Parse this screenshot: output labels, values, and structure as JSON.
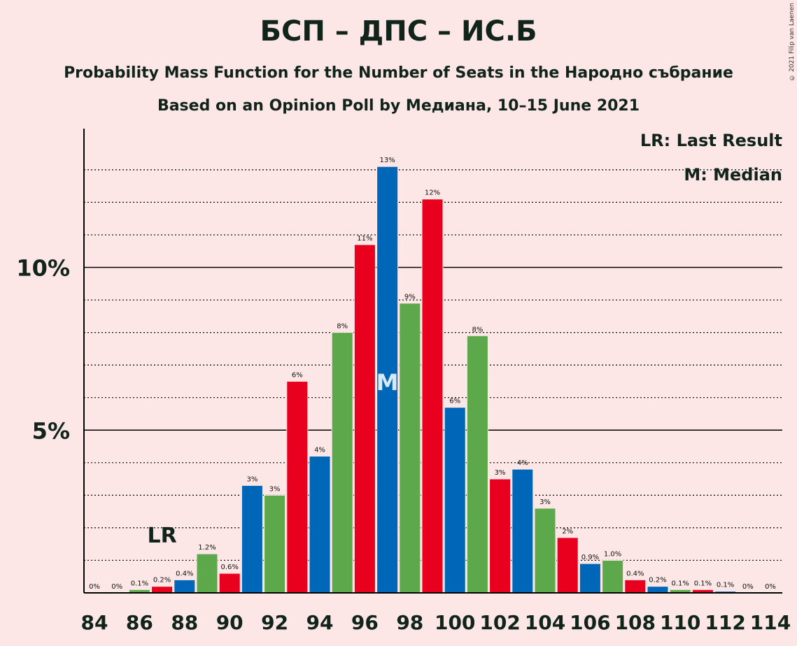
{
  "title": "БСП – ДПС – ИС.Б",
  "subtitle1": "Probability Mass Function for the Number of Seats in the Народно събрание",
  "subtitle2": "Based on an Opinion Poll by Медиана, 10–15 June 2021",
  "copyright": "© 2021 Filip van Laenen",
  "legend": {
    "lr": "LR: Last Result",
    "m": "M: Median"
  },
  "markers": {
    "lr_label": "LR",
    "lr_seat": 87,
    "median_label": "M",
    "median_seat": 97
  },
  "colors": {
    "red": "#E8001E",
    "blue": "#0066B8",
    "green": "#5CA84A",
    "background": "#FDE6E6"
  },
  "chart_data": {
    "type": "bar",
    "x": [
      84,
      85,
      86,
      87,
      88,
      89,
      90,
      91,
      92,
      93,
      94,
      95,
      96,
      97,
      98,
      99,
      100,
      101,
      102,
      103,
      104,
      105,
      106,
      107,
      108,
      109,
      110,
      111,
      112,
      113,
      114
    ],
    "values": [
      0,
      0,
      0.1,
      0.2,
      0.4,
      1.2,
      0.6,
      3.3,
      3.0,
      6.5,
      4.2,
      8.0,
      10.7,
      13.1,
      8.9,
      12.1,
      5.7,
      7.9,
      3.5,
      3.8,
      2.6,
      1.7,
      0.9,
      1.0,
      0.4,
      0.2,
      0.1,
      0.1,
      0.05,
      0,
      0
    ],
    "labels": [
      "0%",
      "0%",
      "0.1%",
      "0.2%",
      "0.4%",
      "1.2%",
      "0.6%",
      "3%",
      "3%",
      "6%",
      "4%",
      "8%",
      "11%",
      "13%",
      "9%",
      "12%",
      "6%",
      "8%",
      "3%",
      "4%",
      "3%",
      "2%",
      "0.9%",
      "1.0%",
      "0.4%",
      "0.2%",
      "0.1%",
      "0.1%",
      "0.1%",
      "0%",
      "0%"
    ],
    "bar_colors": [
      "red",
      "blue",
      "green",
      "red",
      "blue",
      "green",
      "red",
      "blue",
      "green",
      "red",
      "blue",
      "green",
      "red",
      "blue",
      "green",
      "red",
      "blue",
      "green",
      "red",
      "blue",
      "green",
      "red",
      "blue",
      "green",
      "red",
      "blue",
      "green",
      "red",
      "blue",
      "green",
      "red"
    ],
    "x_tick_labels": [
      "84",
      "86",
      "88",
      "90",
      "92",
      "94",
      "96",
      "98",
      "100",
      "102",
      "104",
      "106",
      "108",
      "110",
      "112",
      "114"
    ],
    "y_tick_labels": [
      "5%",
      "10%"
    ],
    "y_ticks": [
      5,
      10
    ],
    "ylim": [
      0,
      14.3
    ],
    "grid": true
  }
}
